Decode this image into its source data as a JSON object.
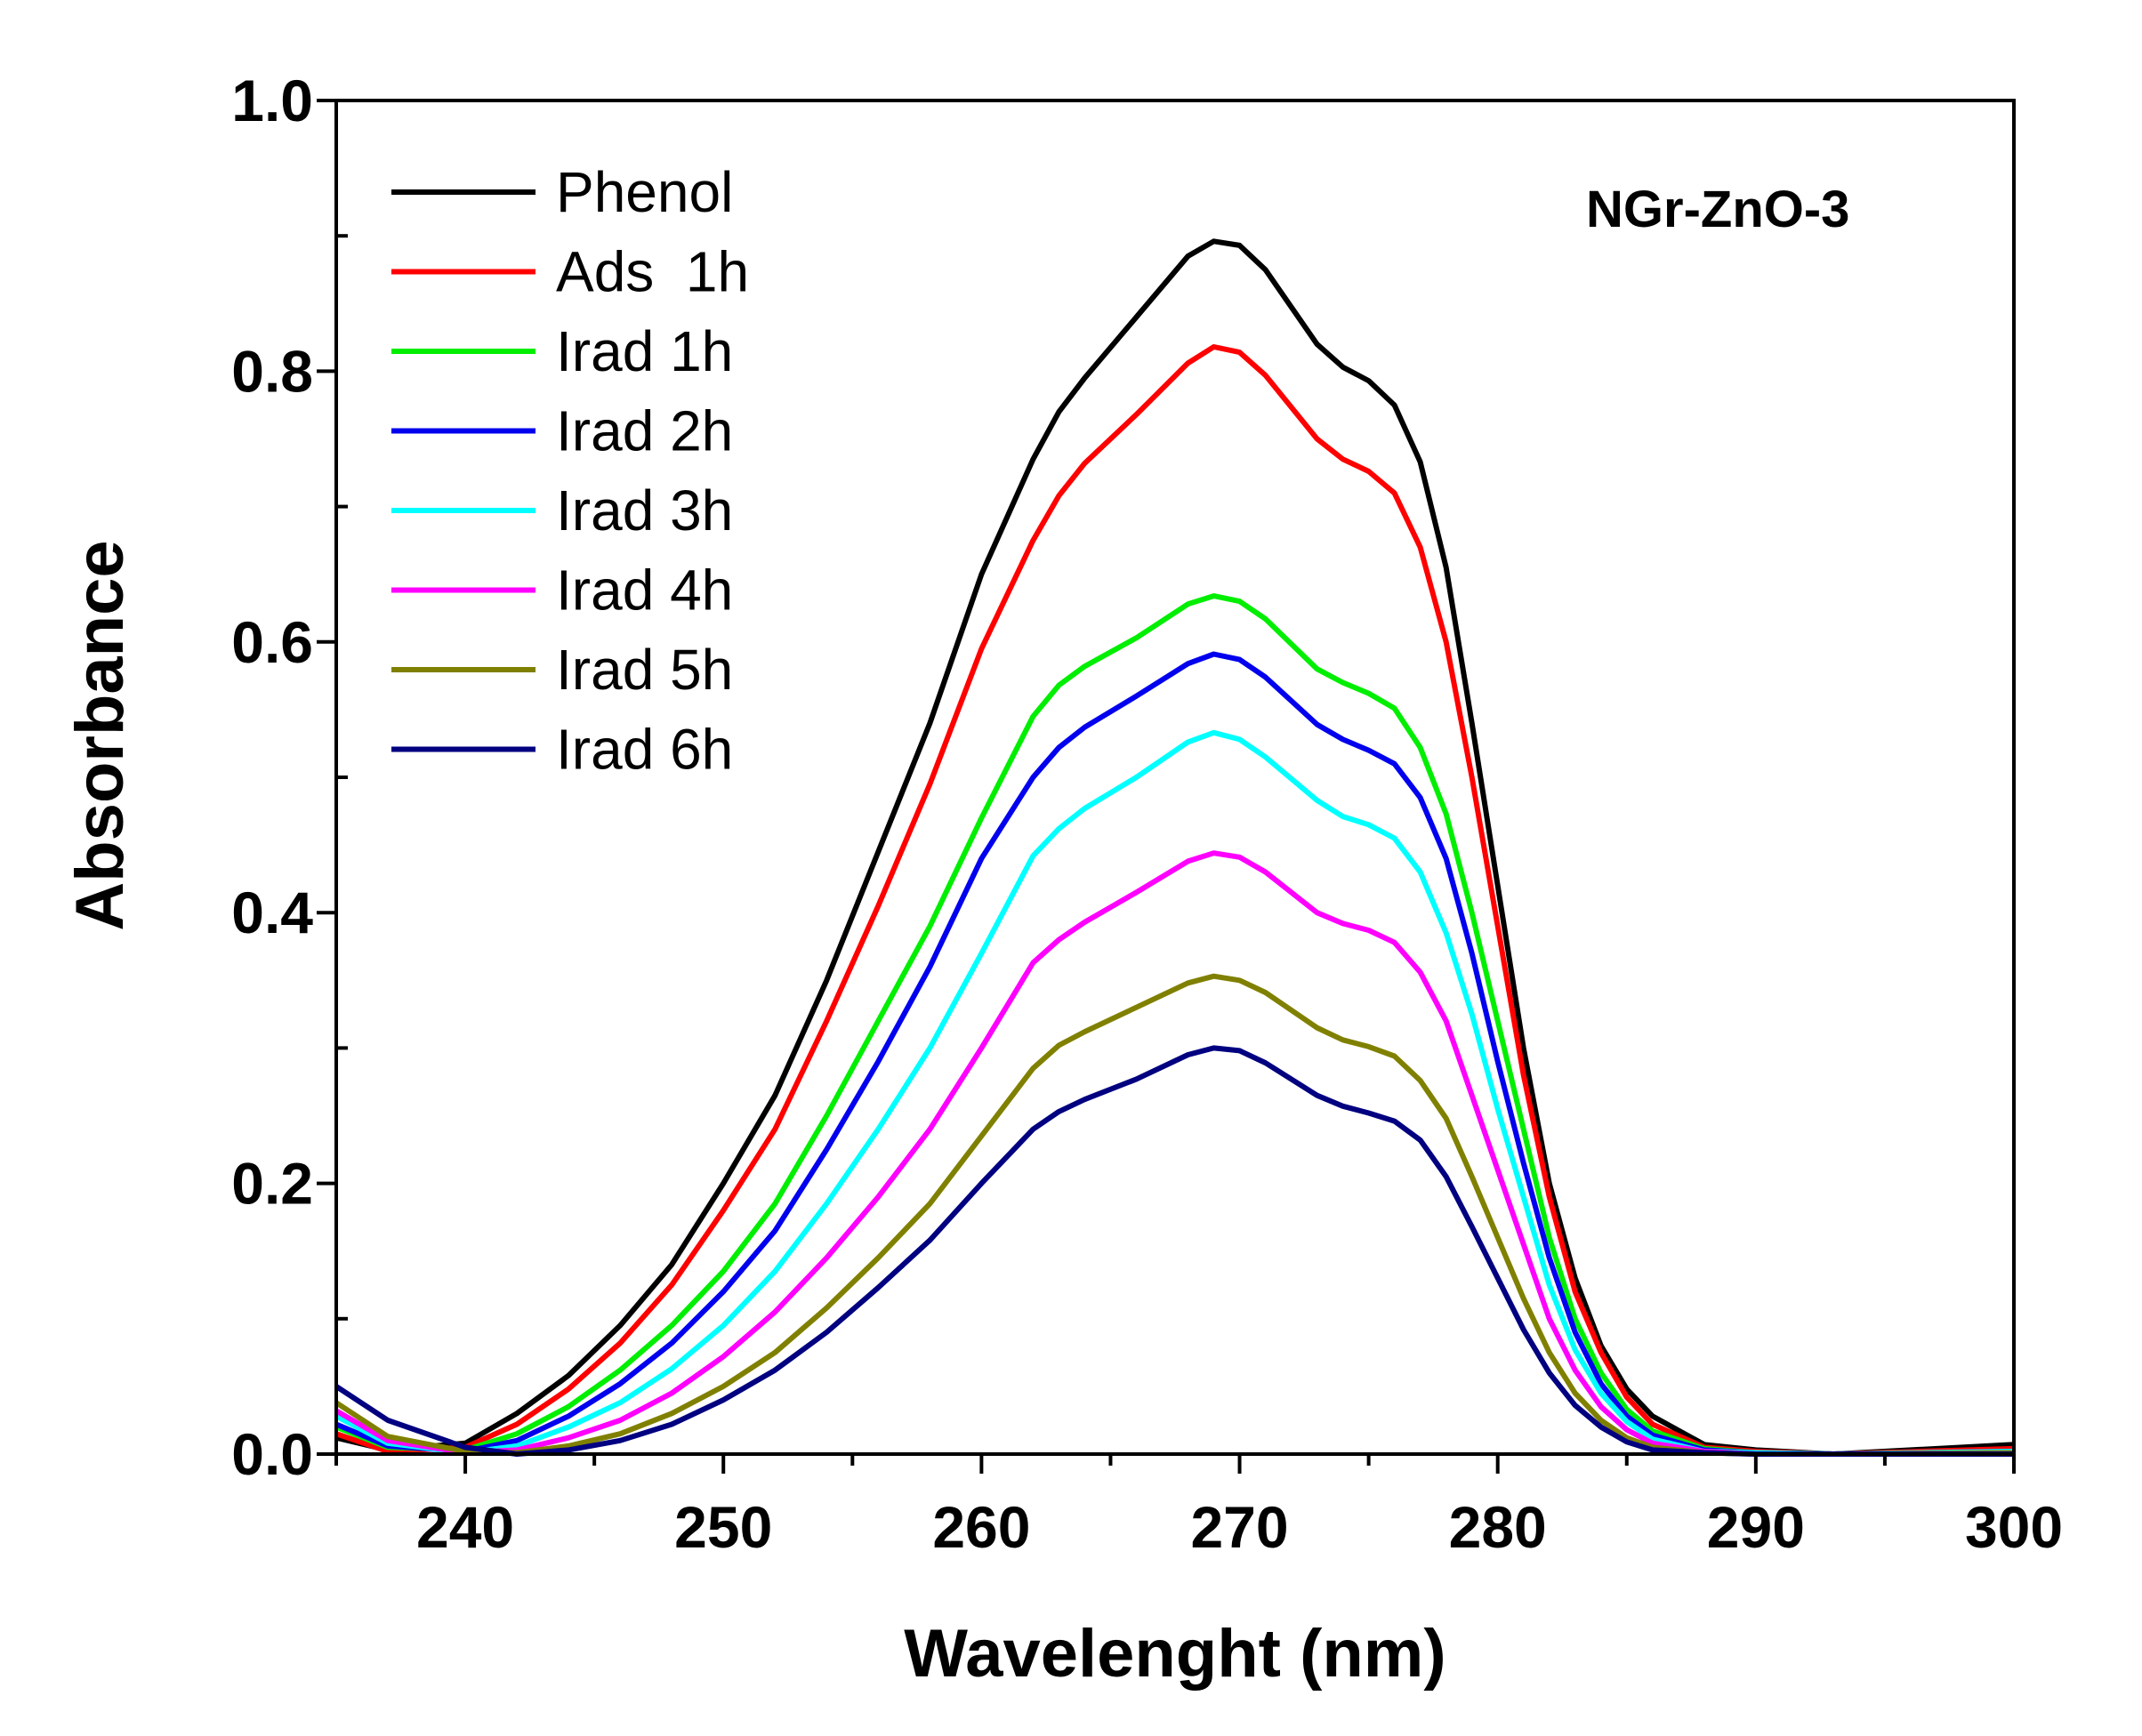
{
  "chart_data": {
    "type": "line",
    "title": "",
    "annotation": "NGr-ZnO-3",
    "xlabel": "Wavelenght (nm)",
    "ylabel": "Absorbance",
    "xlim": [
      235,
      300
    ],
    "ylim": [
      0,
      1.0
    ],
    "x_ticks": [
      240,
      250,
      260,
      270,
      280,
      290,
      300
    ],
    "y_ticks": [
      "0.0",
      "0.2",
      "0.4",
      "0.6",
      "0.8",
      "1.0"
    ],
    "grid": false,
    "legend_position": "top-left",
    "x": [
      235,
      237,
      240,
      242,
      244,
      246,
      248,
      250,
      252,
      254,
      256,
      258,
      260,
      262,
      263,
      264,
      266,
      268,
      269,
      270,
      271,
      273,
      274,
      275,
      276,
      277,
      278,
      279,
      280,
      281,
      282,
      283,
      284,
      285,
      286,
      288,
      290,
      293,
      300
    ],
    "series": [
      {
        "name": "Phenol",
        "color": "#000000",
        "values": [
          0.012,
          0.003,
          0.008,
          0.03,
          0.058,
          0.095,
          0.14,
          0.2,
          0.265,
          0.35,
          0.445,
          0.54,
          0.65,
          0.735,
          0.77,
          0.795,
          0.84,
          0.885,
          0.896,
          0.893,
          0.875,
          0.82,
          0.803,
          0.793,
          0.775,
          0.733,
          0.655,
          0.54,
          0.42,
          0.3,
          0.2,
          0.13,
          0.08,
          0.048,
          0.028,
          0.007,
          0.003,
          0,
          0.007
        ]
      },
      {
        "name": "Ads  1h",
        "color": "#ff0000",
        "values": [
          0.015,
          0.002,
          0.005,
          0.022,
          0.048,
          0.082,
          0.125,
          0.18,
          0.24,
          0.32,
          0.405,
          0.495,
          0.595,
          0.675,
          0.708,
          0.732,
          0.768,
          0.806,
          0.818,
          0.814,
          0.797,
          0.75,
          0.735,
          0.726,
          0.71,
          0.67,
          0.6,
          0.5,
          0.39,
          0.28,
          0.19,
          0.12,
          0.075,
          0.042,
          0.022,
          0.005,
          0.002,
          0,
          0.004
        ]
      },
      {
        "name": "Irad 1h",
        "color": "#00ee00",
        "values": [
          0.02,
          0.005,
          0.003,
          0.015,
          0.035,
          0.062,
          0.095,
          0.135,
          0.185,
          0.25,
          0.32,
          0.39,
          0.47,
          0.545,
          0.568,
          0.582,
          0.603,
          0.628,
          0.634,
          0.63,
          0.617,
          0.58,
          0.57,
          0.562,
          0.551,
          0.522,
          0.473,
          0.4,
          0.32,
          0.24,
          0.16,
          0.1,
          0.06,
          0.033,
          0.017,
          0.004,
          0.001,
          0,
          0.002
        ]
      },
      {
        "name": "Irad 2h",
        "color": "#0000ee",
        "values": [
          0.022,
          0.006,
          0.002,
          0.01,
          0.028,
          0.052,
          0.082,
          0.12,
          0.165,
          0.225,
          0.29,
          0.36,
          0.44,
          0.5,
          0.522,
          0.537,
          0.56,
          0.584,
          0.591,
          0.587,
          0.574,
          0.539,
          0.528,
          0.52,
          0.51,
          0.485,
          0.44,
          0.37,
          0.29,
          0.215,
          0.145,
          0.09,
          0.052,
          0.028,
          0.014,
          0.003,
          0.001,
          0,
          0.002
        ]
      },
      {
        "name": "Irad 3h",
        "color": "#00ffff",
        "values": [
          0.028,
          0.008,
          0.001,
          0.006,
          0.02,
          0.038,
          0.063,
          0.095,
          0.135,
          0.185,
          0.24,
          0.3,
          0.37,
          0.442,
          0.462,
          0.477,
          0.5,
          0.526,
          0.533,
          0.528,
          0.515,
          0.483,
          0.471,
          0.465,
          0.455,
          0.43,
          0.385,
          0.325,
          0.255,
          0.19,
          0.125,
          0.077,
          0.045,
          0.024,
          0.011,
          0.002,
          0.001,
          0,
          0.002
        ]
      },
      {
        "name": "Irad 4h",
        "color": "#ff00ff",
        "values": [
          0.032,
          0.01,
          0.001,
          0.003,
          0.012,
          0.025,
          0.045,
          0.072,
          0.105,
          0.145,
          0.19,
          0.24,
          0.3,
          0.363,
          0.38,
          0.393,
          0.415,
          0.438,
          0.444,
          0.441,
          0.43,
          0.4,
          0.392,
          0.387,
          0.378,
          0.356,
          0.32,
          0.265,
          0.21,
          0.155,
          0.1,
          0.062,
          0.035,
          0.018,
          0.008,
          0.002,
          0,
          0,
          0.001
        ]
      },
      {
        "name": "Irad 5h",
        "color": "#808000",
        "values": [
          0.038,
          0.013,
          0.002,
          0.001,
          0.006,
          0.015,
          0.03,
          0.05,
          0.075,
          0.108,
          0.145,
          0.185,
          0.235,
          0.285,
          0.302,
          0.312,
          0.33,
          0.348,
          0.353,
          0.35,
          0.341,
          0.315,
          0.306,
          0.301,
          0.294,
          0.276,
          0.248,
          0.205,
          0.16,
          0.115,
          0.075,
          0.045,
          0.025,
          0.012,
          0.005,
          0.001,
          0,
          0,
          0.001
        ]
      },
      {
        "name": "Irad 6h",
        "color": "#000080",
        "values": [
          0.05,
          0.025,
          0.005,
          0.0,
          0.003,
          0.01,
          0.022,
          0.04,
          0.062,
          0.09,
          0.123,
          0.158,
          0.2,
          0.24,
          0.253,
          0.262,
          0.277,
          0.295,
          0.3,
          0.298,
          0.289,
          0.265,
          0.257,
          0.252,
          0.246,
          0.232,
          0.205,
          0.168,
          0.13,
          0.092,
          0.06,
          0.036,
          0.02,
          0.009,
          0.003,
          0.001,
          0,
          0,
          0
        ]
      }
    ]
  }
}
